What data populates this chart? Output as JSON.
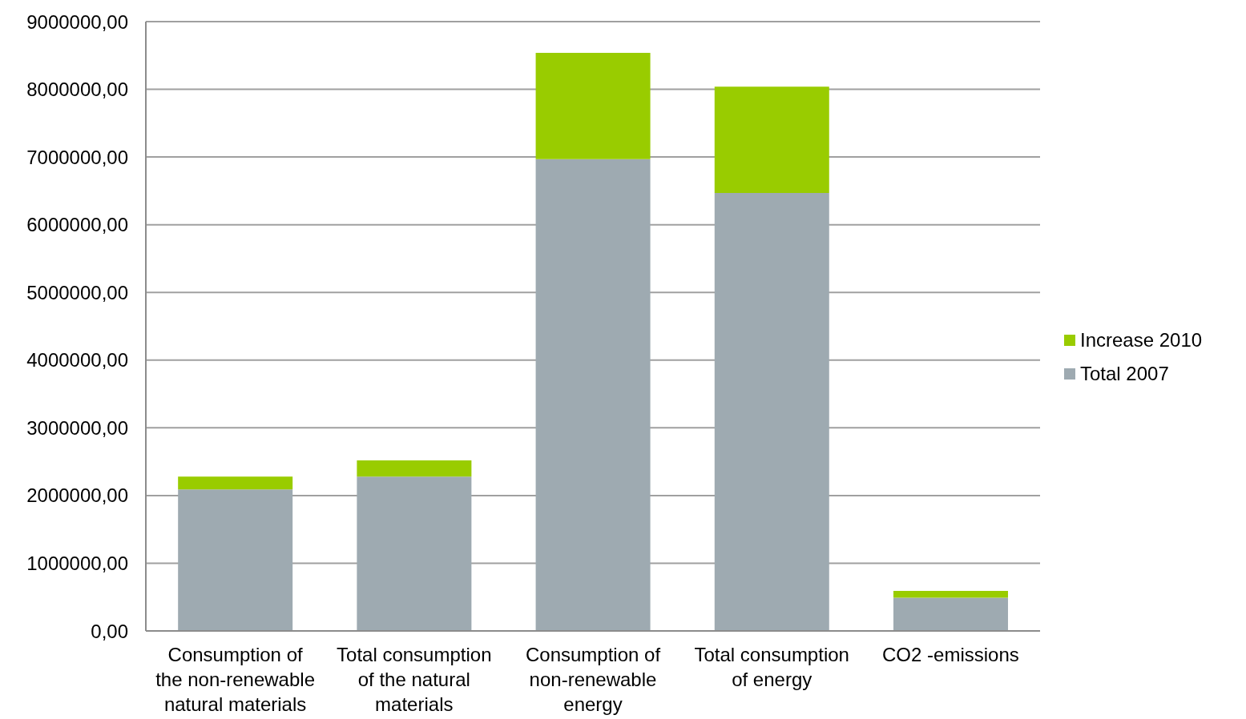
{
  "chart_data": {
    "type": "bar",
    "stacked": true,
    "categories": [
      "Consumption of the non-renewable natural materials",
      "Total consumption of the natural materials",
      "Consumption of non-renewable energy",
      "Total consumption of energy",
      "CO2 -emissions"
    ],
    "series": [
      {
        "name": "Total 2007",
        "color": "#9eaab1",
        "values": [
          2090000,
          2280000,
          6970000,
          6470000,
          490000
        ]
      },
      {
        "name": "Increase 2010",
        "color": "#99cc00",
        "values": [
          190000,
          240000,
          1570000,
          1570000,
          100000
        ]
      }
    ],
    "ylim": [
      0,
      9000000
    ],
    "yticks": [
      {
        "value": 0,
        "label": "0,00"
      },
      {
        "value": 1000000,
        "label": "1000000,00"
      },
      {
        "value": 2000000,
        "label": "2000000,00"
      },
      {
        "value": 3000000,
        "label": "3000000,00"
      },
      {
        "value": 4000000,
        "label": "4000000,00"
      },
      {
        "value": 5000000,
        "label": "5000000,00"
      },
      {
        "value": 6000000,
        "label": "6000000,00"
      },
      {
        "value": 7000000,
        "label": "7000000,00"
      },
      {
        "value": 8000000,
        "label": "8000000,00"
      },
      {
        "value": 9000000,
        "label": "9000000,00"
      }
    ],
    "grid": "y",
    "legend": "right"
  }
}
